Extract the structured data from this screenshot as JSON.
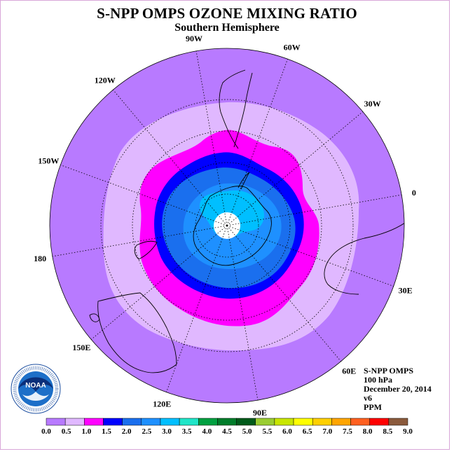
{
  "title": "S-NPP OMPS OZONE MIXING RATIO",
  "subtitle": "Southern Hemisphere",
  "longitude_labels": [
    "90W",
    "60W",
    "30W",
    "0",
    "30E",
    "60E",
    "90E",
    "120E",
    "150E",
    "180",
    "150W",
    "120W"
  ],
  "info": {
    "instrument": "S-NPP OMPS",
    "level": "100 hPa",
    "date": "December 20, 2014",
    "version": "v6",
    "units": "PPM"
  },
  "colorbar": {
    "ticks": [
      "0.0",
      "0.5",
      "1.0",
      "1.5",
      "2.0",
      "2.5",
      "3.0",
      "3.5",
      "4.0",
      "4.5",
      "5.0",
      "5.5",
      "6.0",
      "6.5",
      "7.0",
      "7.5",
      "8.0",
      "8.5",
      "9.0"
    ],
    "colors": [
      "#b87aff",
      "#e0b8ff",
      "#ff00ff",
      "#0000ff",
      "#1a6fee",
      "#1e90ff",
      "#00bfff",
      "#20e5c8",
      "#00a040",
      "#007d2a",
      "#005a1a",
      "#9acd32",
      "#c8e600",
      "#ffff00",
      "#ffd000",
      "#ffa500",
      "#ff6020",
      "#ff0000",
      "#8b5a3c"
    ]
  },
  "logo_text": "NOAA",
  "colors": {
    "outer": "#b87aff",
    "ring_light": "#e0b8ff",
    "ring_magenta": "#ff00ff",
    "ring_blue": "#0000ff",
    "ring_mid": "#1a6fee",
    "ring_light_blue": "#1e90ff",
    "ring_sky": "#00bfff"
  }
}
